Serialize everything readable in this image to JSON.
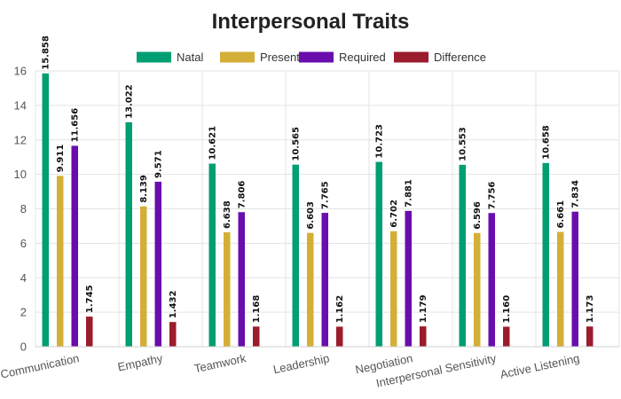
{
  "chart_data": {
    "type": "bar",
    "title": "Interpersonal Traits",
    "xlabel": "",
    "ylabel": "",
    "categories": [
      "Communication",
      "Empathy",
      "Teamwork",
      "Leadership",
      "Negotiation",
      "Interpersonal Sensitivity",
      "Active Listening"
    ],
    "series": [
      {
        "name": "Natal",
        "color": "#009e73",
        "values": [
          15.858,
          13.022,
          10.621,
          10.565,
          10.723,
          10.553,
          10.658
        ],
        "labels": [
          "15.858",
          "13.022",
          "10.621",
          "10.565",
          "10.723",
          "10.553",
          "10.658"
        ]
      },
      {
        "name": "Present",
        "color": "#d4af37",
        "values": [
          9.911,
          8.139,
          6.638,
          6.603,
          6.702,
          6.596,
          6.661
        ],
        "labels": [
          "9.911",
          "8.139",
          "6.638",
          "6.603",
          "6.702",
          "6.596",
          "6.661"
        ]
      },
      {
        "name": "Required",
        "color": "#6a0dad",
        "values": [
          11.656,
          9.571,
          7.806,
          7.765,
          7.881,
          7.756,
          7.834
        ],
        "labels": [
          "11.656",
          "9.571",
          "7.806",
          "7.765",
          "7.881",
          "7.756",
          "7.834"
        ]
      },
      {
        "name": "Difference",
        "color": "#9b1c2c",
        "values": [
          1.745,
          1.432,
          1.168,
          1.162,
          1.179,
          1.16,
          1.173
        ],
        "labels": [
          "1.745",
          "1.432",
          "1.168",
          "1.162",
          "1.179",
          "1.160",
          "1.173"
        ]
      }
    ],
    "ylim": [
      0,
      16
    ],
    "yticks": [
      "0",
      "2",
      "4",
      "6",
      "8",
      "10",
      "12",
      "14",
      "16"
    ],
    "grid": true,
    "legend": "top-center"
  }
}
